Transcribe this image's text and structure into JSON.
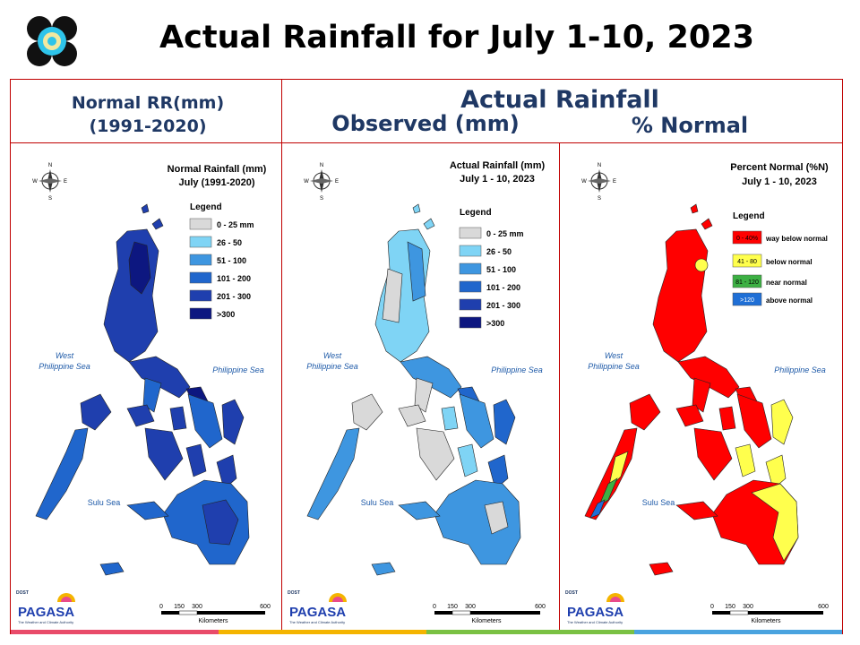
{
  "title": "Actual Rainfall for July 1-10, 2023",
  "headers": {
    "normal_title": "Normal RR(mm)",
    "normal_period": "(1991-2020)",
    "actual_title": "Actual Rainfall",
    "observed": "Observed (mm)",
    "percent": "% Normal"
  },
  "colors": {
    "frame": "#c00000",
    "header_text": "#1f3864",
    "rr_classes": [
      "#d9d9d9",
      "#7fd4f5",
      "#3e96e0",
      "#2066cc",
      "#1f3fae",
      "#0d1780"
    ],
    "pn_classes": [
      "#ff0000",
      "#ffff4d",
      "#3cb043",
      "#1f6fd6"
    ]
  },
  "maps": [
    {
      "title_line1": "Normal Rainfall (mm)",
      "title_line2": "July (1991-2020)",
      "legend_title": "Legend",
      "legend": [
        "0 - 25 mm",
        "26 - 50",
        "51 - 100",
        "101 - 200",
        "201 - 300",
        ">300"
      ],
      "sea_west": [
        "West",
        "Philippine Sea"
      ],
      "sea_east": "Philippine Sea",
      "sea_south": "Sulu Sea",
      "scale_ticks": [
        "0",
        "150",
        "300",
        "600"
      ],
      "scale_unit": "Kilometers",
      "agency": "PAGASA",
      "agency_tag": "DOST",
      "agency_motto": "The Weather and Climate Authority"
    },
    {
      "title_line1": "Actual Rainfall (mm)",
      "title_line2": "July 1 - 10, 2023",
      "legend_title": "Legend",
      "legend": [
        "0 - 25 mm",
        "26 - 50",
        "51 - 100",
        "101 - 200",
        "201 - 300",
        ">300"
      ],
      "sea_west": [
        "West",
        "Philippine Sea"
      ],
      "sea_east": "Philippine Sea",
      "sea_south": "Sulu Sea",
      "scale_ticks": [
        "0",
        "150",
        "300",
        "600"
      ],
      "scale_unit": "Kilometers",
      "agency": "PAGASA",
      "agency_tag": "DOST",
      "agency_motto": "The Weather and Climate Authority"
    },
    {
      "title_line1": "Percent Normal (%N)",
      "title_line2": "July 1 - 10, 2023",
      "legend_title": "Legend",
      "legend": [
        {
          "range": "0 - 40%",
          "label": "way below normal"
        },
        {
          "range": "41 - 80",
          "label": "below normal"
        },
        {
          "range": "81 - 120",
          "label": "near normal"
        },
        {
          "range": ">120",
          "label": "above normal"
        }
      ],
      "sea_west": [
        "West",
        "Philippine Sea"
      ],
      "sea_east": "Philippine Sea",
      "sea_south": "Sulu Sea",
      "scale_ticks": [
        "0",
        "150",
        "300",
        "600"
      ],
      "scale_unit": "Kilometers",
      "agency": "PAGASA",
      "agency_tag": "DOST",
      "agency_motto": "The Weather and Climate Authority"
    }
  ]
}
